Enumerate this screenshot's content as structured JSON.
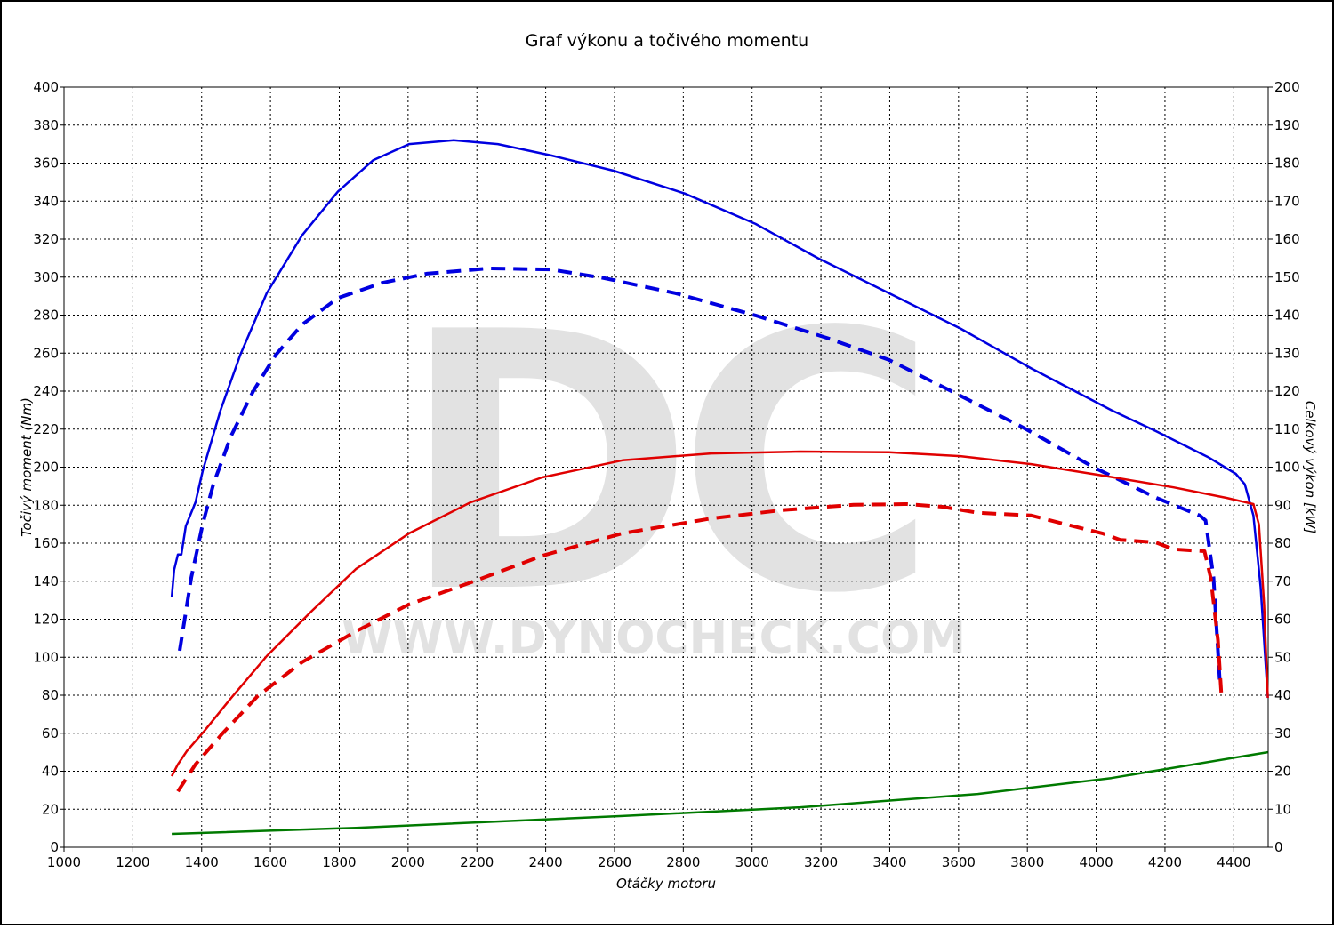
{
  "chart_data": {
    "type": "line",
    "title": "Graf výkonu a točivého momentu",
    "xlabel": "Otáčky motoru",
    "ylabel": "Točivý moment (Nm)",
    "y2label": "Celkový výkon [kW]",
    "watermark_logo": "DC",
    "watermark_url": "WWW.DYNOCHECK.COM",
    "xlim": [
      1000,
      4500
    ],
    "xticks": [
      1000,
      1200,
      1400,
      1600,
      1800,
      2000,
      2200,
      2400,
      2600,
      2800,
      3000,
      3200,
      3400,
      3600,
      3800,
      4000,
      4200,
      4400
    ],
    "ylim": [
      0,
      400
    ],
    "yticks": [
      0,
      20,
      40,
      60,
      80,
      100,
      120,
      140,
      160,
      180,
      200,
      220,
      240,
      260,
      280,
      300,
      320,
      340,
      360,
      380,
      400
    ],
    "y2lim": [
      0,
      200
    ],
    "y2ticks": [
      0,
      10,
      20,
      30,
      40,
      50,
      60,
      70,
      80,
      90,
      100,
      110,
      120,
      130,
      140,
      150,
      160,
      170,
      180,
      190,
      200
    ],
    "grid": true,
    "series": [
      {
        "color": "#0000e0",
        "dashed": false,
        "x": [
          1313,
          1320,
          1331,
          1341,
          1354,
          1382,
          1403,
          1455,
          1512,
          1589,
          1692,
          1796,
          1899,
          2003,
          2132,
          2261,
          2416,
          2597,
          2804,
          3010,
          3191,
          3398,
          3605,
          3811,
          4044,
          4173,
          4328,
          4406,
          4432,
          4457,
          4478,
          4499
        ],
        "values": [
          131.5,
          146,
          154,
          154,
          169,
          181.5,
          198,
          230,
          259,
          291.5,
          322,
          345,
          361.6,
          370,
          372,
          370,
          364,
          356,
          344,
          328,
          310,
          291.5,
          273,
          252,
          230,
          219,
          205,
          196.5,
          191,
          174.5,
          137,
          78.6
        ]
      },
      {
        "color": "#0000e0",
        "dashed": true,
        "x": [
          1336,
          1370,
          1403,
          1434,
          1486,
          1550,
          1615,
          1692,
          1796,
          1925,
          2054,
          2235,
          2416,
          2571,
          2778,
          3010,
          3217,
          3398,
          3579,
          3786,
          3992,
          4173,
          4302,
          4318,
          4341,
          4359
        ],
        "values": [
          103.4,
          142,
          170,
          191,
          216.6,
          240,
          259,
          275,
          289,
          297,
          301.8,
          304.6,
          304,
          299.4,
          291.5,
          279.8,
          268,
          256.4,
          240,
          221,
          200,
          184,
          174.5,
          172,
          142,
          88
        ]
      },
      {
        "color": "#e00000",
        "dashed": false,
        "axis": "y2",
        "x": [
          1313,
          1331,
          1357,
          1408,
          1486,
          1589,
          1718,
          1848,
          2003,
          2183,
          2390,
          2623,
          2881,
          3140,
          3398,
          3605,
          3811,
          4018,
          4225,
          4380,
          4457,
          4473,
          4488,
          4499
        ],
        "values": [
          18.7,
          21.8,
          25.3,
          30.6,
          39.3,
          50.3,
          62,
          73.2,
          82.6,
          90.8,
          97.3,
          101.8,
          103.6,
          104.1,
          103.9,
          102.9,
          100.8,
          97.8,
          94.7,
          91.9,
          90.3,
          84.9,
          63.9,
          39.3
        ]
      },
      {
        "color": "#e00000",
        "dashed": true,
        "axis": "y2",
        "x": [
          1331,
          1382,
          1460,
          1563,
          1692,
          1848,
          2003,
          2183,
          2390,
          2623,
          2881,
          3088,
          3295,
          3450,
          3553,
          3656,
          3811,
          3915,
          4018,
          4070,
          4173,
          4225,
          4315,
          4333,
          4354,
          4364
        ],
        "values": [
          14.7,
          21.8,
          29.9,
          39.8,
          48.7,
          56.8,
          63.9,
          69.7,
          76.7,
          82.6,
          86.5,
          88.7,
          90.1,
          90.3,
          89.6,
          88,
          87.3,
          84.9,
          82.6,
          80.9,
          80.2,
          78.4,
          77.9,
          70.9,
          54.5,
          40
        ]
      },
      {
        "color": "#007a00",
        "dashed": false,
        "axis": "y2",
        "x": [
          1313,
          1848,
          2623,
          3140,
          3656,
          4044,
          4499
        ],
        "values": [
          3.5,
          5.1,
          8.2,
          10.5,
          14,
          18.2,
          25
        ]
      }
    ]
  }
}
